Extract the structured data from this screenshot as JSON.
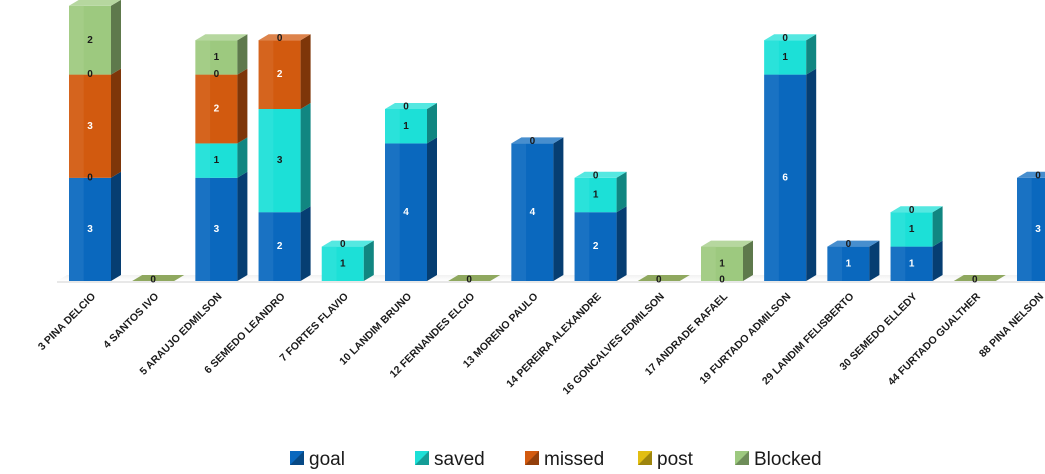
{
  "chart_data": {
    "type": "bar",
    "stacked": true,
    "three_d": true,
    "title": "",
    "xlabel": "",
    "ylabel": "",
    "ylim": [
      0,
      10.5
    ],
    "grid": false,
    "legend_position": "bottom",
    "categories": [
      "3 PINA DELCIO",
      "4 SANTOS IVO",
      "5 ARAUJO EDMILSON",
      "6 SEMEDO LEANDRO",
      "7 FORTES FLAVIO",
      "10 LANDIM BRUNO",
      "12 FERNANDES ELCIO",
      "13 MORENO PAULO",
      "14 PEREIRA ALEXANDRE",
      "16 GONCALVES EDMILSON",
      "17 ANDRADE RAFAEL",
      "19 FURTADO ADMILSON",
      "29 LANDIM FELISBERTO",
      "30 SEMEDO ELLEDY",
      "44 FURTADO GUALTHER",
      "88 PINA NELSON"
    ],
    "series": [
      {
        "name": "goal",
        "color": "#0A68BE",
        "values": [
          3,
          0,
          3,
          2,
          0,
          4,
          0,
          4,
          2,
          0,
          0,
          6,
          1,
          1,
          0,
          3
        ]
      },
      {
        "name": "saved",
        "color": "#1CE0D7",
        "values": [
          0,
          0,
          1,
          3,
          1,
          1,
          0,
          0,
          1,
          0,
          0,
          1,
          0,
          1,
          0,
          0
        ]
      },
      {
        "name": "missed",
        "color": "#D25A0F",
        "values": [
          3,
          0,
          2,
          2,
          0,
          0,
          0,
          0,
          0,
          0,
          0,
          0,
          0,
          0,
          0,
          0
        ]
      },
      {
        "name": "post",
        "color": "#E2BE12",
        "values": [
          0,
          0,
          0,
          0,
          0,
          0,
          0,
          0,
          0,
          0,
          0,
          0,
          0,
          0,
          0,
          0
        ]
      },
      {
        "name": "Blocked",
        "color": "#9DC97F",
        "values": [
          2,
          0,
          1,
          0,
          0,
          0,
          0,
          0,
          0,
          0,
          1,
          0,
          0,
          0,
          0,
          0
        ]
      }
    ]
  }
}
